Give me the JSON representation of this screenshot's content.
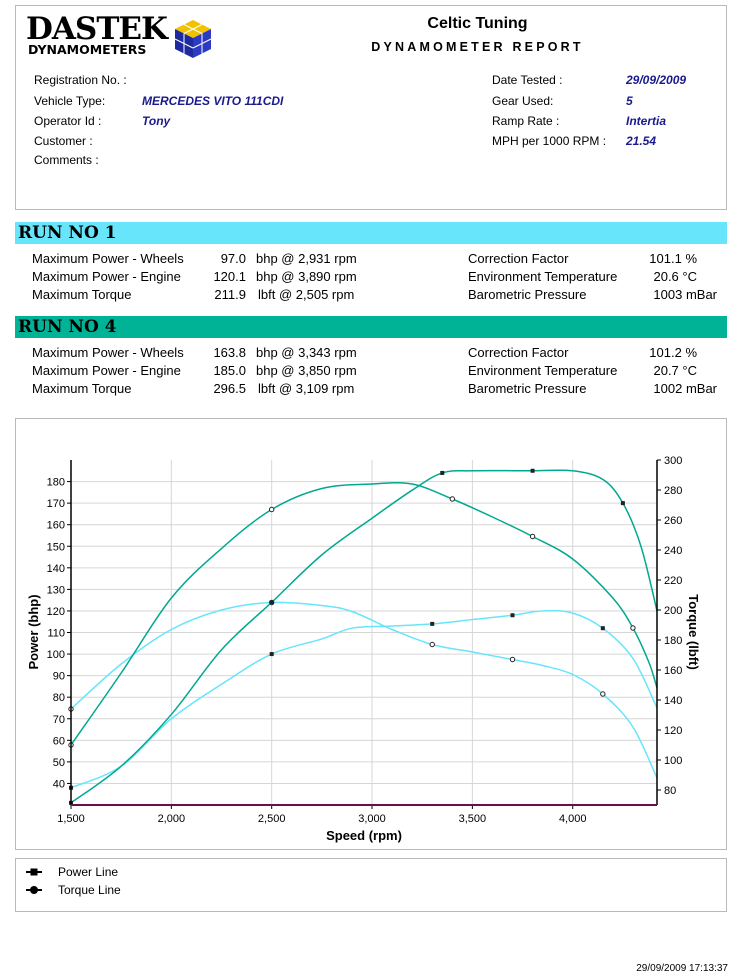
{
  "header": {
    "logo_text": "DASTEK",
    "logo_sub": "DYNAMOMETERS",
    "company": "Celtic Tuning",
    "report_title": "DYNAMOMETER REPORT"
  },
  "info": {
    "registration_label": "Registration No. :",
    "registration_value": "",
    "vehicle_label": "Vehicle Type:",
    "vehicle_value": "MERCEDES VITO 111CDI",
    "operator_label": "Operator Id :",
    "operator_value": "Tony",
    "customer_label": "Customer :",
    "comments_label": "Comments :",
    "date_label": "Date Tested :",
    "date_value": "29/09/2009",
    "gear_label": "Gear Used:",
    "gear_value": "5",
    "ramp_label": "Ramp Rate :",
    "ramp_value": "Intertia",
    "mph_label": "MPH per 1000 RPM :",
    "mph_value": "21.54"
  },
  "runs": [
    {
      "title": "RUN NO 1",
      "color": "#66e5fb",
      "rows": [
        {
          "label": "Maximum Power - Wheels",
          "value": "97.0",
          "unit": "bhp @ 2,931 rpm"
        },
        {
          "label": "Maximum Power - Engine",
          "value": "120.1",
          "unit": "bhp @ 3,890 rpm"
        },
        {
          "label": "Maximum Torque",
          "value": "211.9",
          "unit": "lbft @ 2,505 rpm"
        }
      ],
      "env": [
        {
          "label": "Correction Factor",
          "value": "101.1 %"
        },
        {
          "label": "Environment Temperature",
          "value": "20.6 °C"
        },
        {
          "label": "Barometric Pressure",
          "value": "1003 mBar"
        }
      ]
    },
    {
      "title": "RUN NO 4",
      "color": "#00b396",
      "rows": [
        {
          "label": "Maximum Power - Wheels",
          "value": "163.8",
          "unit": "bhp @ 3,343 rpm"
        },
        {
          "label": "Maximum Power - Engine",
          "value": "185.0",
          "unit": "bhp @ 3,850 rpm"
        },
        {
          "label": "Maximum Torque",
          "value": "296.5",
          "unit": "lbft @ 3,109 rpm"
        }
      ],
      "env": [
        {
          "label": "Correction Factor",
          "value": "101.2 %"
        },
        {
          "label": "Environment Temperature",
          "value": "20.7 °C"
        },
        {
          "label": "Barometric Pressure",
          "value": "1002 mBar"
        }
      ]
    }
  ],
  "chart_data": {
    "type": "line",
    "xlabel": "Speed (rpm)",
    "ylabel": "Power (bhp)",
    "y2label": "Torque (lbft)",
    "xlim": [
      1500,
      4420
    ],
    "ylim": [
      30,
      190
    ],
    "y2lim": [
      70,
      300
    ],
    "x_ticks": [
      "1,500",
      "2,000",
      "2,500",
      "3,000",
      "3,500",
      "4,000"
    ],
    "x_tick_values": [
      1500,
      2000,
      2500,
      3000,
      3500,
      4000
    ],
    "y_ticks": [
      40,
      50,
      60,
      70,
      80,
      90,
      100,
      110,
      120,
      130,
      140,
      150,
      160,
      170,
      180
    ],
    "y2_ticks": [
      80,
      100,
      120,
      140,
      160,
      180,
      200,
      220,
      240,
      260,
      280,
      300
    ],
    "grid": true,
    "series": [
      {
        "run": "RUN NO 1",
        "kind": "power",
        "axis": "left",
        "color": "#66e5fb",
        "x": [
          1500,
          1750,
          2000,
          2250,
          2500,
          2750,
          2900,
          3100,
          3300,
          3500,
          3700,
          3850,
          4000,
          4150,
          4300,
          4420
        ],
        "y": [
          38,
          48,
          70,
          86,
          100,
          107,
          112,
          113,
          114,
          116,
          118,
          120,
          119,
          112,
          98,
          75
        ]
      },
      {
        "run": "RUN NO 1",
        "kind": "torque",
        "axis": "right",
        "color": "#66e5fb",
        "x": [
          1500,
          1750,
          2000,
          2250,
          2500,
          2750,
          2900,
          3100,
          3300,
          3500,
          3700,
          3850,
          4000,
          4150,
          4300,
          4420
        ],
        "y": [
          134,
          164,
          187,
          200,
          205,
          203,
          199,
          187,
          177,
          172,
          167,
          163,
          157,
          144,
          122,
          88
        ]
      },
      {
        "run": "RUN NO 4",
        "kind": "power",
        "axis": "left",
        "color": "#00a890",
        "x": [
          1500,
          1750,
          2000,
          2250,
          2500,
          2750,
          3000,
          3200,
          3350,
          3500,
          3800,
          4000,
          4150,
          4250,
          4340,
          4420
        ],
        "y": [
          31,
          48,
          72,
          102,
          124,
          146,
          163,
          176,
          184,
          185,
          185,
          185,
          181,
          170,
          150,
          120
        ]
      },
      {
        "run": "RUN NO 4",
        "kind": "torque",
        "axis": "right",
        "color": "#00a890",
        "x": [
          1500,
          1750,
          2000,
          2250,
          2500,
          2750,
          3000,
          3200,
          3400,
          3600,
          3800,
          4000,
          4200,
          4300,
          4380,
          4420
        ],
        "y": [
          110,
          158,
          208,
          241,
          267,
          281,
          284,
          284,
          274,
          262,
          249,
          234,
          208,
          188,
          165,
          148
        ]
      }
    ],
    "legend": [
      "Power Line",
      "Torque Line"
    ]
  },
  "footer": {
    "timestamp": "29/09/2009 17:13:37"
  }
}
